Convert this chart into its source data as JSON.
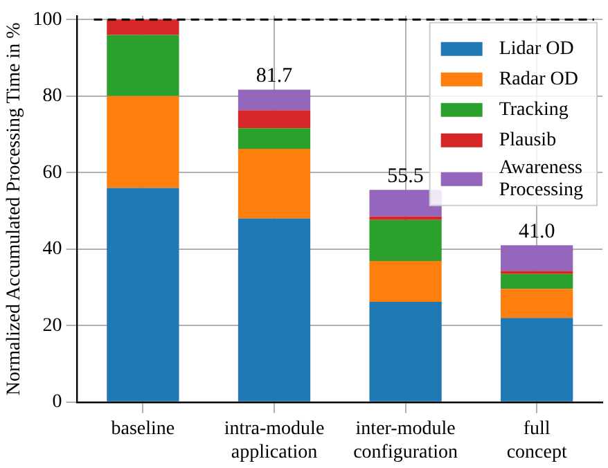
{
  "chart_data": {
    "type": "bar",
    "stacked": true,
    "ylabel": "Normalized Accumulated Processing Time in %",
    "categories": [
      "baseline",
      "intra-module application",
      "inter-module configuration",
      "full concept"
    ],
    "series": [
      {
        "name": "Lidar OD",
        "color": "#1f77b4",
        "values": [
          56,
          48.0,
          26.2,
          22.0
        ]
      },
      {
        "name": "Radar OD",
        "color": "#ff7f0e",
        "values": [
          24,
          18.2,
          10.7,
          7.6
        ]
      },
      {
        "name": "Tracking",
        "color": "#2ca02c",
        "values": [
          16,
          5.4,
          10.7,
          3.9
        ]
      },
      {
        "name": "Plausib",
        "color": "#d62728",
        "values": [
          4,
          4.7,
          0.9,
          0.8
        ]
      },
      {
        "name": "Awareness Processing",
        "color": "#9467bd",
        "values": [
          0,
          5.4,
          7.0,
          6.7
        ]
      }
    ],
    "totals": [
      null,
      "81.7",
      "55.5",
      "41.0"
    ],
    "ylim": [
      0,
      101
    ],
    "yticks": [
      0,
      20,
      40,
      60,
      80,
      100
    ],
    "ref_lines": [
      {
        "axis": "y",
        "value": 100,
        "color": "#000000",
        "line_style": "dashed"
      }
    ],
    "grid": true,
    "legend": "top right"
  }
}
